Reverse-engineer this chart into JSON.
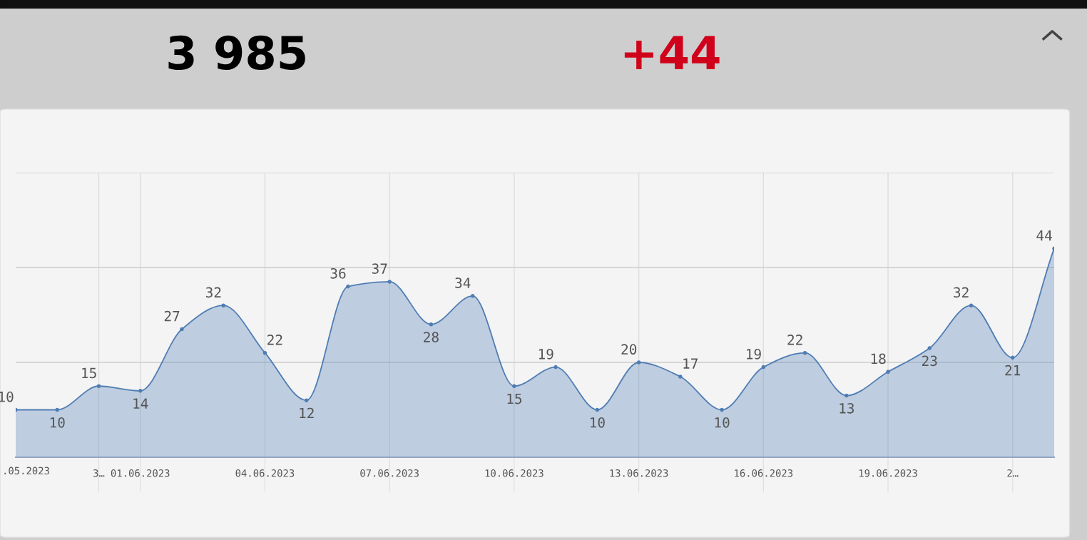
{
  "chart_data": {
    "type": "area",
    "annotations": [
      "3 985",
      "+44",
      ".05.2023"
    ],
    "categories": [
      null,
      null,
      "3…",
      "01.06.2023",
      null,
      null,
      "04.06.2023",
      null,
      null,
      "07.06.2023",
      null,
      null,
      "10.06.2023",
      null,
      null,
      "13.06.2023",
      null,
      null,
      "16.06.2023",
      null,
      null,
      "19.06.2023",
      null,
      null,
      "2…",
      null
    ],
    "series": [
      {
        "color": "#4f7db3",
        "values": [
          10,
          10,
          15,
          14,
          27,
          32,
          22,
          12,
          36,
          37,
          28,
          34,
          15,
          19,
          10,
          20,
          17,
          10,
          19,
          22,
          13,
          18,
          23,
          32,
          21,
          44
        ]
      }
    ],
    "ylim": [
      0,
      60
    ],
    "yticks": [
      {
        "value": 20,
        "label": null
      },
      {
        "value": 40,
        "label": null
      },
      {
        "value": 60,
        "label": null
      }
    ],
    "tick_labels": "x",
    "grid": true,
    "data_labels": true,
    "marker": "circle"
  }
}
